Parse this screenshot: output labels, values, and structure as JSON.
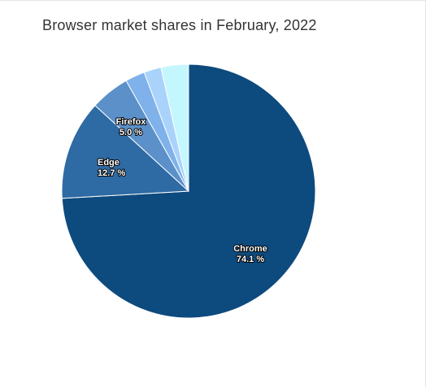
{
  "chart_data": {
    "type": "pie",
    "title": "Browser market shares in February, 2022",
    "start_angle_deg": 0,
    "direction": "clockwise",
    "slices": [
      {
        "name": "Chrome",
        "value": 74.1,
        "color": "#0d4a7e",
        "label": "Chrome",
        "value_label": "74.1 %"
      },
      {
        "name": "Edge",
        "value": 12.7,
        "color": "#2e6aa3",
        "label": "Edge",
        "value_label": "12.7 %"
      },
      {
        "name": "Firefox",
        "value": 5.0,
        "color": "#5b90c9",
        "label": "Firefox",
        "value_label": "5.0 %"
      },
      {
        "name": "",
        "value": 2.5,
        "color": "#7fb1ea",
        "label": "",
        "value_label": ""
      },
      {
        "name": "",
        "value": 2.2,
        "color": "#a9d3fb",
        "label": "",
        "value_label": ""
      },
      {
        "name": "",
        "value": 3.5,
        "color": "#c4f6fd",
        "label": "",
        "value_label": ""
      }
    ]
  }
}
